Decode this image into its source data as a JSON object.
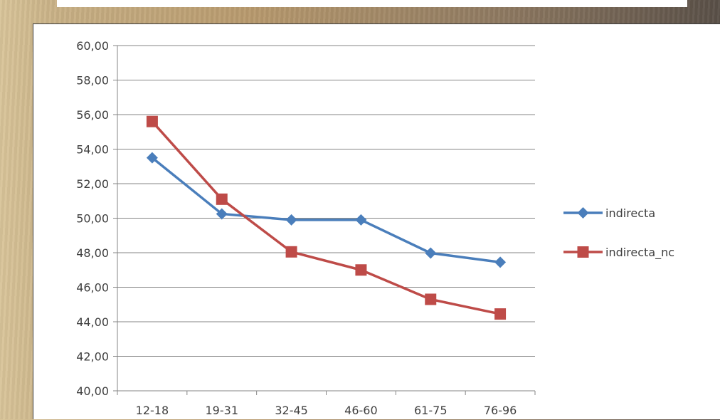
{
  "colors": {
    "series_1": "#4a7ebb",
    "series_2": "#be4b48",
    "gridline": "#868686",
    "text": "#404040"
  },
  "chart_data": {
    "type": "line",
    "title": "",
    "xlabel": "",
    "ylabel": "",
    "categories": [
      "12-18",
      "19-31",
      "32-45",
      "46-60",
      "61-75",
      "76-96"
    ],
    "series": [
      {
        "name": "indirecta",
        "marker": "diamond",
        "values": [
          53.5,
          50.25,
          49.9,
          49.9,
          47.98,
          47.45
        ]
      },
      {
        "name": "indirecta_nc",
        "marker": "square",
        "values": [
          55.6,
          51.1,
          48.05,
          47.0,
          45.3,
          44.45
        ]
      }
    ],
    "ylim": [
      40,
      60
    ],
    "yticks": [
      "40,00",
      "42,00",
      "44,00",
      "46,00",
      "48,00",
      "50,00",
      "52,00",
      "54,00",
      "56,00",
      "58,00",
      "60,00"
    ],
    "grid": "horizontal",
    "legend_position": "right"
  }
}
